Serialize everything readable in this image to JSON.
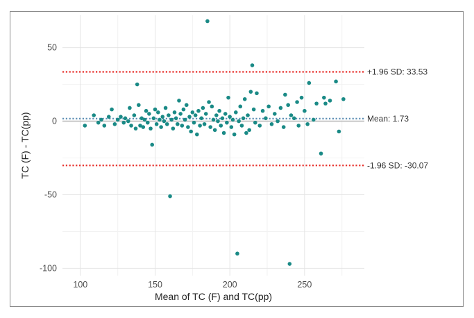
{
  "chart_data": {
    "type": "scatter",
    "title": "",
    "xlabel": "Mean of TC (F) and TC(pp)",
    "ylabel": "TC (F) - TC(pp)",
    "xlim": [
      88,
      290
    ],
    "ylim": [
      -105,
      72
    ],
    "xticks": [
      100,
      150,
      200,
      250
    ],
    "yticks": [
      -100,
      -50,
      0,
      50
    ],
    "grid": true,
    "point_color": "#1a8a86",
    "reference_lines": [
      {
        "name": "upper",
        "label": "+1.96 SD: 33.53",
        "value": 33.53,
        "color": "#e8302c",
        "style": "dotted"
      },
      {
        "name": "mean",
        "label": "Mean: 1.73",
        "value": 1.73,
        "color": "#5e8fb5",
        "style": "dotted"
      },
      {
        "name": "lower",
        "label": "-1.96 SD: -30.07",
        "value": -30.07,
        "color": "#e8302c",
        "style": "dotted"
      }
    ],
    "zero_line": {
      "value": 0,
      "color": "#b8b8b8"
    },
    "points": [
      {
        "x": 103,
        "y": -3
      },
      {
        "x": 109,
        "y": 4
      },
      {
        "x": 112,
        "y": -1
      },
      {
        "x": 114,
        "y": 1
      },
      {
        "x": 116,
        "y": -3
      },
      {
        "x": 119,
        "y": 3
      },
      {
        "x": 121,
        "y": 8
      },
      {
        "x": 123,
        "y": -2
      },
      {
        "x": 125,
        "y": 1
      },
      {
        "x": 127,
        "y": 3
      },
      {
        "x": 129,
        "y": -1
      },
      {
        "x": 130,
        "y": 2
      },
      {
        "x": 132,
        "y": 0
      },
      {
        "x": 133,
        "y": 9
      },
      {
        "x": 134,
        "y": -3
      },
      {
        "x": 136,
        "y": 4
      },
      {
        "x": 137,
        "y": -5
      },
      {
        "x": 138,
        "y": 25
      },
      {
        "x": 139,
        "y": 11
      },
      {
        "x": 140,
        "y": -3
      },
      {
        "x": 141,
        "y": 2
      },
      {
        "x": 142,
        "y": -4
      },
      {
        "x": 143,
        "y": 1
      },
      {
        "x": 144,
        "y": 7
      },
      {
        "x": 145,
        "y": -1
      },
      {
        "x": 146,
        "y": 5
      },
      {
        "x": 147,
        "y": -5
      },
      {
        "x": 148,
        "y": -16
      },
      {
        "x": 149,
        "y": 2
      },
      {
        "x": 150,
        "y": 8
      },
      {
        "x": 151,
        "y": -2
      },
      {
        "x": 152,
        "y": 6
      },
      {
        "x": 153,
        "y": 1
      },
      {
        "x": 154,
        "y": -4
      },
      {
        "x": 155,
        "y": 3
      },
      {
        "x": 156,
        "y": 0
      },
      {
        "x": 157,
        "y": 9
      },
      {
        "x": 158,
        "y": -2
      },
      {
        "x": 159,
        "y": 4
      },
      {
        "x": 160,
        "y": -51
      },
      {
        "x": 161,
        "y": 1
      },
      {
        "x": 162,
        "y": -5
      },
      {
        "x": 163,
        "y": 6
      },
      {
        "x": 164,
        "y": 2
      },
      {
        "x": 165,
        "y": -2
      },
      {
        "x": 166,
        "y": 14
      },
      {
        "x": 167,
        "y": 5
      },
      {
        "x": 168,
        "y": -3
      },
      {
        "x": 169,
        "y": 8
      },
      {
        "x": 170,
        "y": 1
      },
      {
        "x": 171,
        "y": 11
      },
      {
        "x": 172,
        "y": -4
      },
      {
        "x": 173,
        "y": 3
      },
      {
        "x": 174,
        "y": -7
      },
      {
        "x": 175,
        "y": 6
      },
      {
        "x": 176,
        "y": -1
      },
      {
        "x": 177,
        "y": 4
      },
      {
        "x": 178,
        "y": -9
      },
      {
        "x": 179,
        "y": 7
      },
      {
        "x": 180,
        "y": -3
      },
      {
        "x": 181,
        "y": 2
      },
      {
        "x": 182,
        "y": 9
      },
      {
        "x": 183,
        "y": -2
      },
      {
        "x": 184,
        "y": 5
      },
      {
        "x": 185,
        "y": 68
      },
      {
        "x": 186,
        "y": 13
      },
      {
        "x": 187,
        "y": -4
      },
      {
        "x": 188,
        "y": 10
      },
      {
        "x": 189,
        "y": 1
      },
      {
        "x": 190,
        "y": -6
      },
      {
        "x": 191,
        "y": 4
      },
      {
        "x": 192,
        "y": 0
      },
      {
        "x": 193,
        "y": 7
      },
      {
        "x": 194,
        "y": -3
      },
      {
        "x": 195,
        "y": 2
      },
      {
        "x": 196,
        "y": -8
      },
      {
        "x": 197,
        "y": 5
      },
      {
        "x": 198,
        "y": -1
      },
      {
        "x": 199,
        "y": 16
      },
      {
        "x": 200,
        "y": 3
      },
      {
        "x": 201,
        "y": -4
      },
      {
        "x": 202,
        "y": 1
      },
      {
        "x": 203,
        "y": -9
      },
      {
        "x": 204,
        "y": 6
      },
      {
        "x": 205,
        "y": -90
      },
      {
        "x": 206,
        "y": 0
      },
      {
        "x": 207,
        "y": 10
      },
      {
        "x": 208,
        "y": -3
      },
      {
        "x": 209,
        "y": 2
      },
      {
        "x": 210,
        "y": 15
      },
      {
        "x": 211,
        "y": -8
      },
      {
        "x": 212,
        "y": 4
      },
      {
        "x": 213,
        "y": -6
      },
      {
        "x": 214,
        "y": 20
      },
      {
        "x": 215,
        "y": 38
      },
      {
        "x": 216,
        "y": 8
      },
      {
        "x": 217,
        "y": -1
      },
      {
        "x": 218,
        "y": 19
      },
      {
        "x": 220,
        "y": -3
      },
      {
        "x": 222,
        "y": 7
      },
      {
        "x": 224,
        "y": 2
      },
      {
        "x": 226,
        "y": 10
      },
      {
        "x": 228,
        "y": -2
      },
      {
        "x": 230,
        "y": 5
      },
      {
        "x": 232,
        "y": 0
      },
      {
        "x": 234,
        "y": 9
      },
      {
        "x": 236,
        "y": -4
      },
      {
        "x": 237,
        "y": 18
      },
      {
        "x": 239,
        "y": 11
      },
      {
        "x": 240,
        "y": -97
      },
      {
        "x": 241,
        "y": 4
      },
      {
        "x": 243,
        "y": 2
      },
      {
        "x": 245,
        "y": 13
      },
      {
        "x": 246,
        "y": -3
      },
      {
        "x": 248,
        "y": 16
      },
      {
        "x": 250,
        "y": 7
      },
      {
        "x": 252,
        "y": -2
      },
      {
        "x": 253,
        "y": 26
      },
      {
        "x": 256,
        "y": 1
      },
      {
        "x": 258,
        "y": 12
      },
      {
        "x": 261,
        "y": -22
      },
      {
        "x": 263,
        "y": 16
      },
      {
        "x": 264,
        "y": 12
      },
      {
        "x": 267,
        "y": 14
      },
      {
        "x": 271,
        "y": 27
      },
      {
        "x": 273,
        "y": -7
      },
      {
        "x": 276,
        "y": 15
      }
    ]
  }
}
